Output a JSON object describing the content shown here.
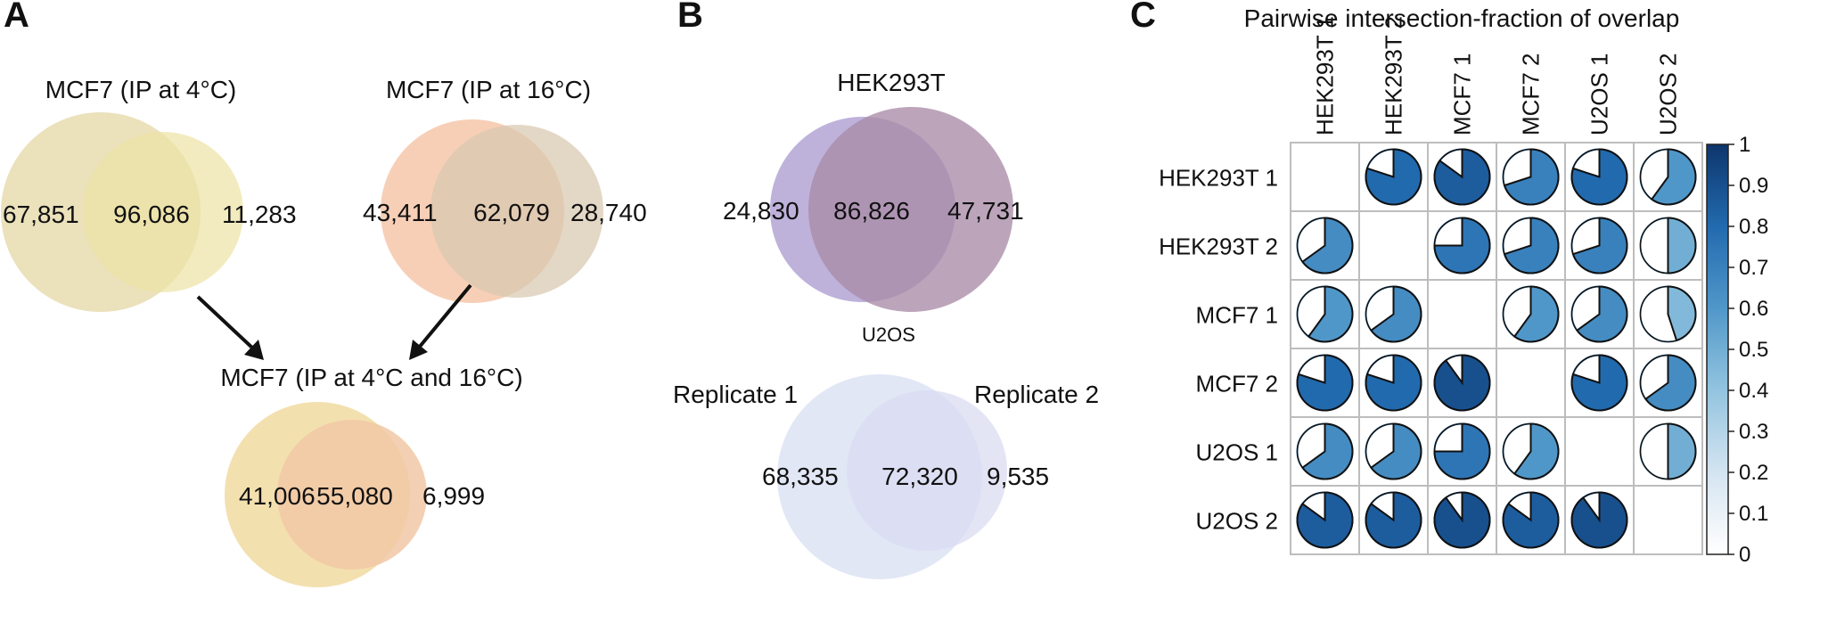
{
  "figure": {
    "panel_a": {
      "letter": "A",
      "venn_4c": {
        "title": "MCF7 (IP at 4°C)",
        "left": "67,851",
        "center": "96,086",
        "right": "11,283"
      },
      "venn_16c": {
        "title": "MCF7 (IP at 16°C)",
        "left": "43,411",
        "center": "62,079",
        "right": "28,740"
      },
      "venn_combined": {
        "title": "MCF7 (IP at 4°C and 16°C)",
        "left": "41,006",
        "center": "55,080",
        "right": "6,999"
      }
    },
    "panel_b": {
      "letter": "B",
      "venn_hek": {
        "title": "HEK293T",
        "left": "24,830",
        "center": "86,826",
        "right": "47,731"
      },
      "venn_u2os": {
        "title": "U2OS",
        "label_left": "Replicate 1",
        "label_right": "Replicate 2",
        "left": "68,335",
        "center": "72,320",
        "right": "9,535"
      }
    },
    "panel_c": {
      "letter": "C",
      "title": "Pairwise intersection-fraction of overlap"
    },
    "colors": {
      "mcf7_4c_left": "#e6d9a8",
      "mcf7_4c_right": "#ece3a4",
      "mcf7_4c_overlap": "#dcc873",
      "mcf7_16c_left": "#f5c3a5",
      "mcf7_16c_right": "#d8c7b0",
      "mcf7_16c_overlap": "#d8a98a",
      "comb_left": "#f1daa1",
      "comb_right": "#f1c8a6",
      "comb_overlap": "#ebb67a",
      "hek_left": "#b3a5d5",
      "hek_right": "#a98ca8",
      "hek_overlap": "#8f6f99",
      "u2os_left": "#dfe4f5",
      "u2os_right": "#d9dcf2",
      "u2os_overlap": "#c4c9e8",
      "arrow": "#111111",
      "matrix_grid": "#bdbdbd",
      "pie_outline": "#111111"
    }
  },
  "chart_data": {
    "type": "heatmap",
    "title": "Pairwise intersection-fraction of overlap",
    "rows": [
      "HEK293T  1",
      "HEK293T  2",
      "MCF7  1",
      "MCF7  2",
      "U2OS  1",
      "U2OS  2"
    ],
    "columns": [
      "HEK293T  1",
      "HEK293T  2",
      "MCF7  1",
      "MCF7  2",
      "U2OS  1",
      "U2OS  2"
    ],
    "values": [
      [
        null,
        0.8,
        0.85,
        0.7,
        0.8,
        0.6
      ],
      [
        0.65,
        null,
        0.75,
        0.7,
        0.7,
        0.5
      ],
      [
        0.6,
        0.65,
        null,
        0.6,
        0.65,
        0.45
      ],
      [
        0.8,
        0.8,
        0.9,
        null,
        0.8,
        0.65
      ],
      [
        0.65,
        0.65,
        0.75,
        0.6,
        null,
        0.5
      ],
      [
        0.85,
        0.85,
        0.9,
        0.85,
        0.9,
        null
      ]
    ],
    "colorbar": {
      "ticks": [
        0,
        0.1,
        0.2,
        0.3,
        0.4,
        0.5,
        0.6,
        0.7,
        0.8,
        0.9,
        1
      ],
      "tick_labels": [
        "0",
        "0.1",
        "0.2",
        "0.3",
        "0.4",
        "0.5",
        "0.6",
        "0.7",
        "0.8",
        "0.9",
        "1"
      ],
      "range": [
        0,
        1
      ]
    }
  }
}
